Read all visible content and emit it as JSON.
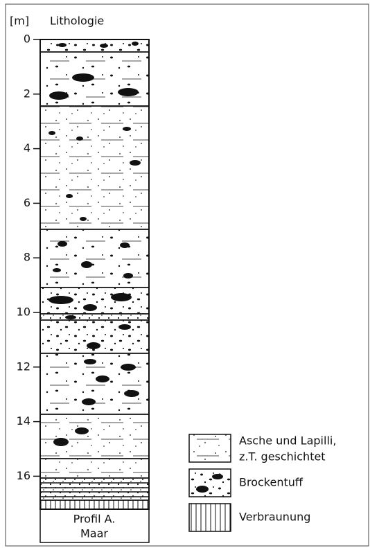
{
  "axis_unit": "[m]",
  "column_title": "Lithologie",
  "depth_ticks": [
    0,
    2,
    4,
    6,
    8,
    10,
    12,
    14,
    16
  ],
  "profile_label": [
    "Profil A.",
    "Maar"
  ],
  "legend": [
    {
      "label": [
        "Asche und Lapilli,",
        "z.T. geschichtet"
      ]
    },
    {
      "label": [
        "Brockentuff"
      ]
    },
    {
      "label": [
        "Verbraunung"
      ]
    }
  ]
}
